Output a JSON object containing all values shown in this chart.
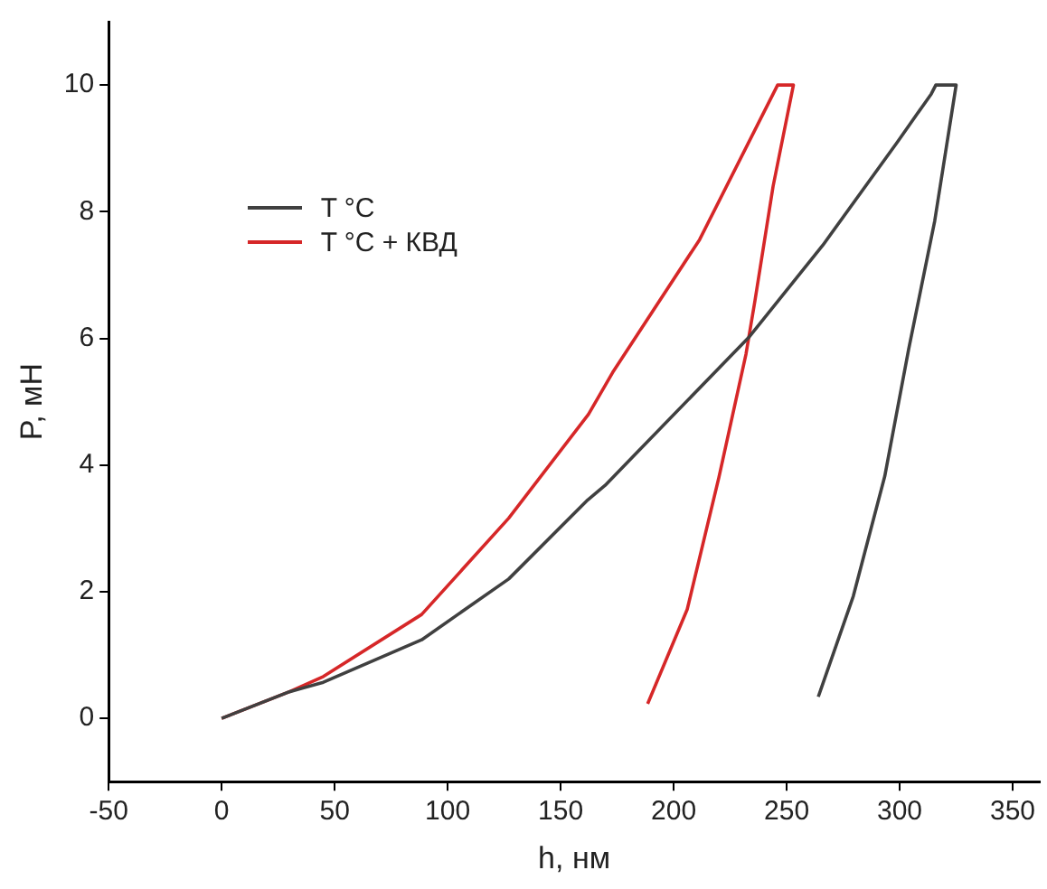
{
  "chart_data": {
    "type": "line",
    "xlabel": "h, нм",
    "ylabel": "P, мН",
    "xlim": [
      -50,
      362
    ],
    "ylim": [
      -1,
      11
    ],
    "xticks": [
      -50,
      0,
      50,
      100,
      150,
      200,
      250,
      300,
      350
    ],
    "yticks": [
      0,
      2,
      4,
      6,
      8,
      10
    ],
    "grid": false,
    "legend": "top left",
    "marker": "none",
    "line_style": "solid",
    "series": [
      {
        "name": "T °C",
        "color": "#404040",
        "x": [
          0,
          30,
          45,
          88.5,
          127,
          162,
          169.7,
          233.6,
          266,
          299,
          314,
          316,
          325,
          315.5,
          304,
          293.4,
          279.5,
          264
        ],
        "values": [
          0,
          0.42,
          0.57,
          1.24,
          2.2,
          3.45,
          3.68,
          6.03,
          7.47,
          9.1,
          9.86,
          10,
          10,
          7.85,
          5.83,
          3.82,
          1.93,
          0.34
        ]
      },
      {
        "name": "T °C + КВД",
        "color": "#d62728",
        "x": [
          0,
          30,
          45,
          88.5,
          127,
          162.3,
          173,
          211.5,
          246,
          253,
          244,
          236,
          232,
          220,
          206,
          188.5
        ],
        "values": [
          0,
          0.42,
          0.66,
          1.64,
          3.16,
          4.8,
          5.46,
          7.56,
          10,
          10,
          8.4,
          6.6,
          5.75,
          3.8,
          1.72,
          0.23
        ]
      }
    ]
  }
}
